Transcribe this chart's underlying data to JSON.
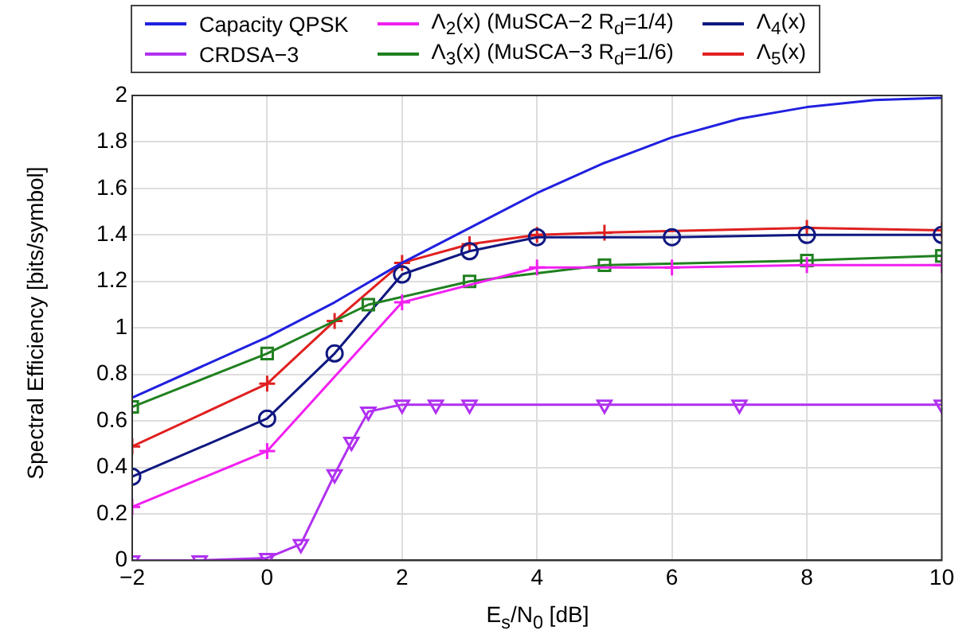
{
  "chart_data": {
    "type": "line",
    "xlabel": "E$_{s}$/N$_{0}$ [dB]",
    "ylabel": "Spectral Efficiency [bits/symbol]",
    "xlim": [
      -2,
      10
    ],
    "xticks": [
      {
        "value": -2,
        "label": "−2"
      },
      0,
      2,
      4,
      6,
      8,
      10
    ],
    "ylim": [
      0,
      2
    ],
    "yticks": [
      0,
      0.2,
      0.4,
      0.6,
      0.8,
      1,
      1.2,
      1.4,
      1.6,
      1.8,
      2
    ],
    "grid": true,
    "legend": "top",
    "line_style": "solid",
    "series": [
      {
        "name": "Capacity QPSK",
        "color": "#2020e0",
        "marker": "none",
        "x": [
          -2,
          0,
          1,
          2,
          3,
          4,
          5,
          6,
          7,
          8,
          9,
          10
        ],
        "values": [
          0.7,
          0.96,
          1.11,
          1.28,
          1.43,
          1.58,
          1.71,
          1.82,
          1.9,
          1.95,
          1.98,
          1.99
        ]
      },
      {
        "name": "CRDSA−3",
        "color": "#b030f0",
        "marker": "triangle",
        "x": [
          -2,
          -1,
          0,
          0.5,
          1,
          1.25,
          1.5,
          2,
          2.5,
          3,
          5,
          7,
          10
        ],
        "values": [
          0,
          0,
          0.01,
          0.07,
          0.37,
          0.51,
          0.64,
          0.67,
          0.67,
          0.67,
          0.67,
          0.67,
          0.67
        ]
      },
      {
        "name": "Λ$_{2}$(x) (MuSCA−2 R$_{d}$=1/4)",
        "color": "#f020f0",
        "marker": "cross",
        "x": [
          -2,
          0,
          2,
          4,
          6,
          8,
          10
        ],
        "values": [
          0.23,
          0.47,
          1.11,
          1.26,
          1.26,
          1.27,
          1.27
        ]
      },
      {
        "name": "Λ$_{3}$(x) (MuSCA−3 R$_{d}$=1/6)",
        "color": "#208020",
        "marker": "square",
        "x": [
          -2,
          0,
          1.5,
          3,
          5,
          8,
          10
        ],
        "values": [
          0.66,
          0.89,
          1.1,
          1.2,
          1.27,
          1.29,
          1.31
        ]
      },
      {
        "name": "Λ$_{4}$(x)",
        "color": "#101880",
        "marker": "circle",
        "x": [
          -2,
          0,
          1,
          2,
          3,
          4,
          6,
          8,
          10
        ],
        "values": [
          0.36,
          0.61,
          0.89,
          1.23,
          1.33,
          1.39,
          1.39,
          1.4,
          1.4
        ]
      },
      {
        "name": "Λ$_{5}$(x)",
        "color": "#e02020",
        "marker": "cross",
        "x": [
          -2,
          0,
          1,
          2,
          3,
          4,
          5,
          8,
          10
        ],
        "values": [
          0.49,
          0.76,
          1.03,
          1.28,
          1.36,
          1.4,
          1.41,
          1.43,
          1.42
        ]
      }
    ]
  }
}
